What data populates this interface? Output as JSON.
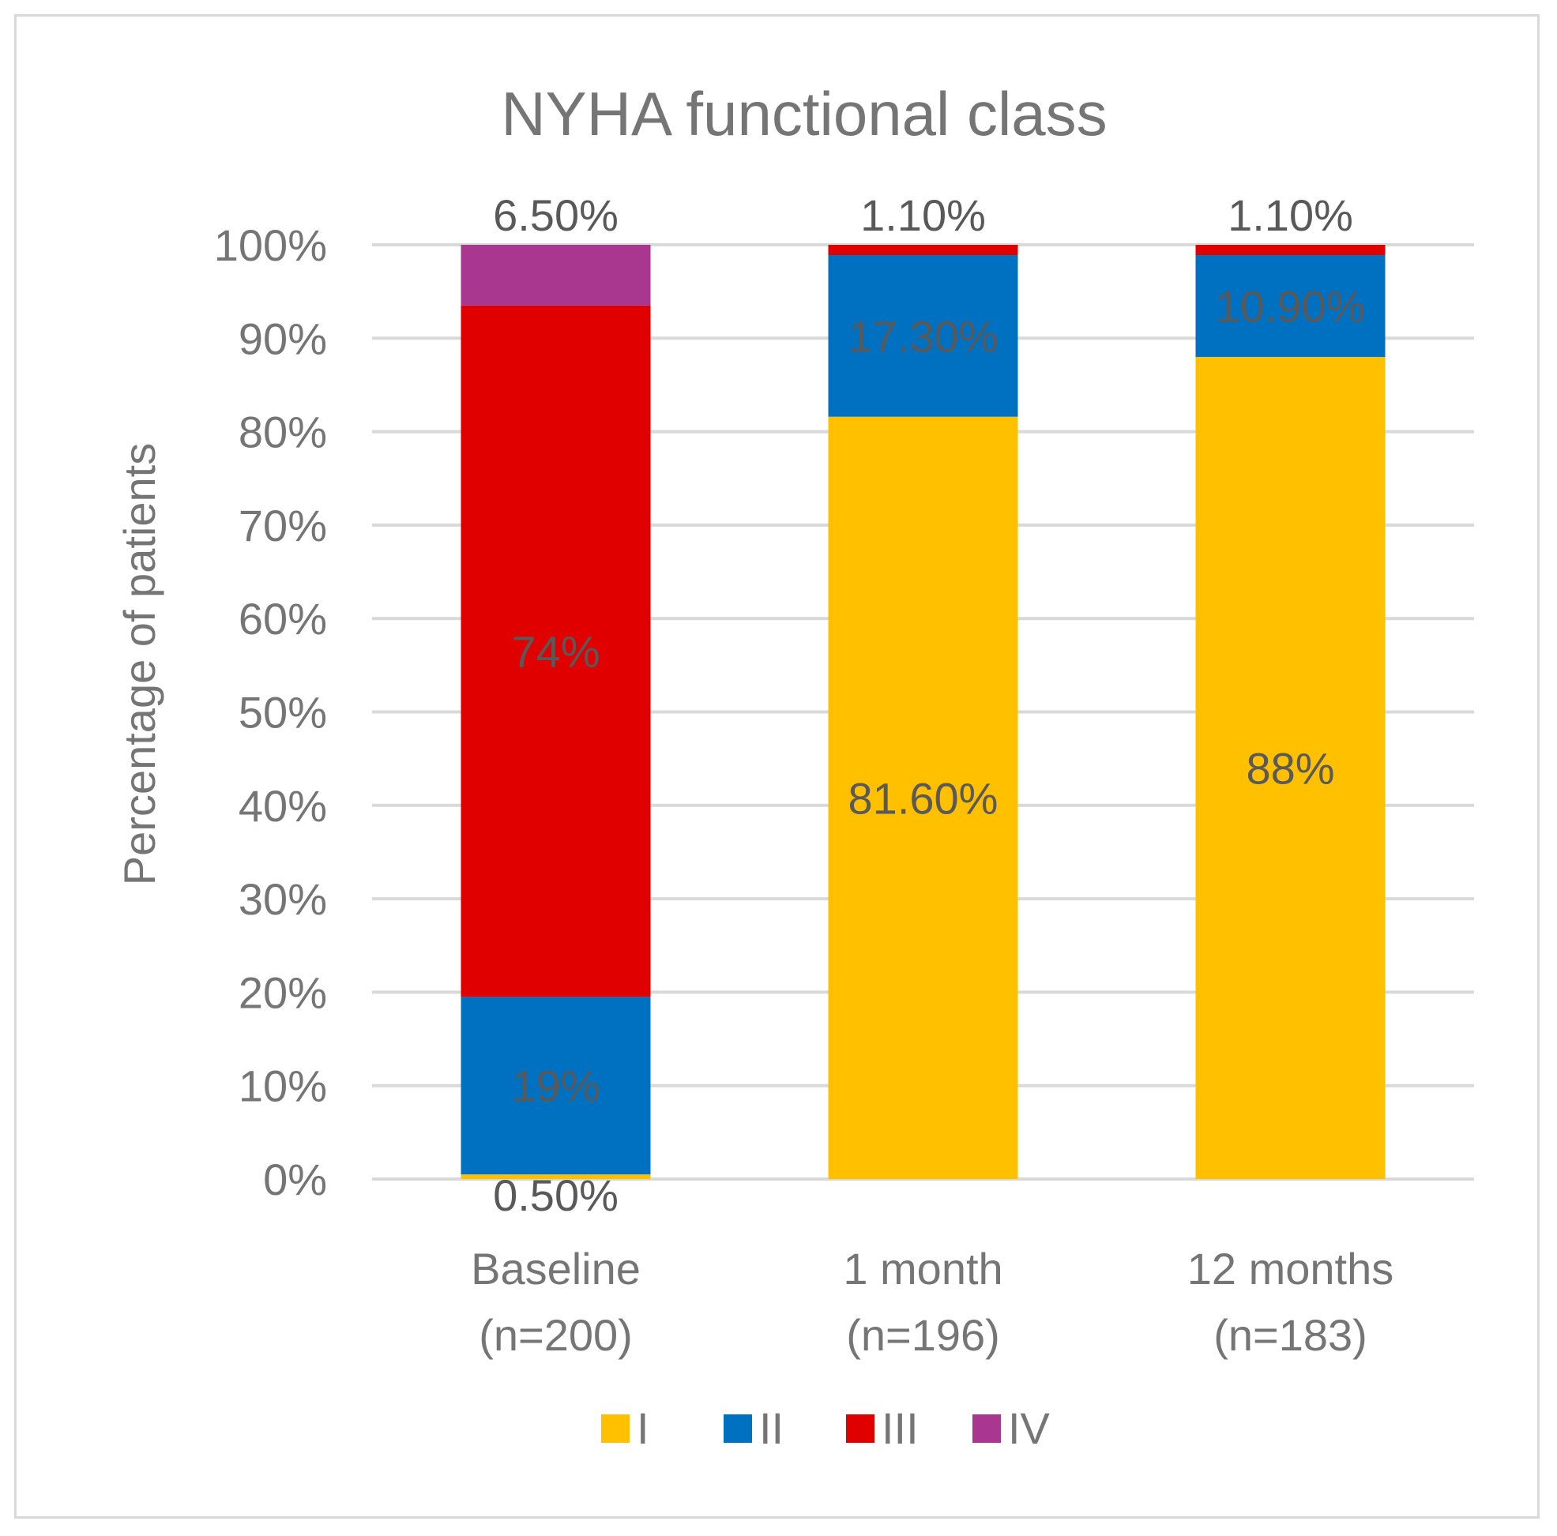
{
  "chart_data": {
    "type": "bar",
    "stacked": true,
    "title": "NYHA functional class",
    "ylabel": "Percentage of patients",
    "xlabel": "",
    "ylim": [
      0,
      100
    ],
    "yticks": [
      "0%",
      "10%",
      "20%",
      "30%",
      "40%",
      "50%",
      "60%",
      "70%",
      "80%",
      "90%",
      "100%"
    ],
    "categories": [
      [
        "Baseline",
        "(n=200)"
      ],
      [
        "1 month",
        "(n=196)"
      ],
      [
        "12 months",
        "(n=183)"
      ]
    ],
    "series": [
      {
        "name": "I",
        "color": "#FFC000",
        "values": [
          0.5,
          81.6,
          88.0
        ],
        "labels": [
          "0.50%",
          "81.60%",
          "88%"
        ]
      },
      {
        "name": "II",
        "color": "#0070C0",
        "values": [
          19.0,
          17.3,
          10.9
        ],
        "labels": [
          "19%",
          "17.30%",
          "10.90%"
        ]
      },
      {
        "name": "III",
        "color": "#E00000",
        "values": [
          74.0,
          1.1,
          1.1
        ],
        "labels": [
          "74%",
          "1.10%",
          "1.10%"
        ]
      },
      {
        "name": "IV",
        "color": "#A9368F",
        "values": [
          6.5,
          0,
          0
        ],
        "labels": [
          "6.50%",
          "",
          ""
        ]
      }
    ],
    "legend_position": "bottom",
    "grid": true
  }
}
